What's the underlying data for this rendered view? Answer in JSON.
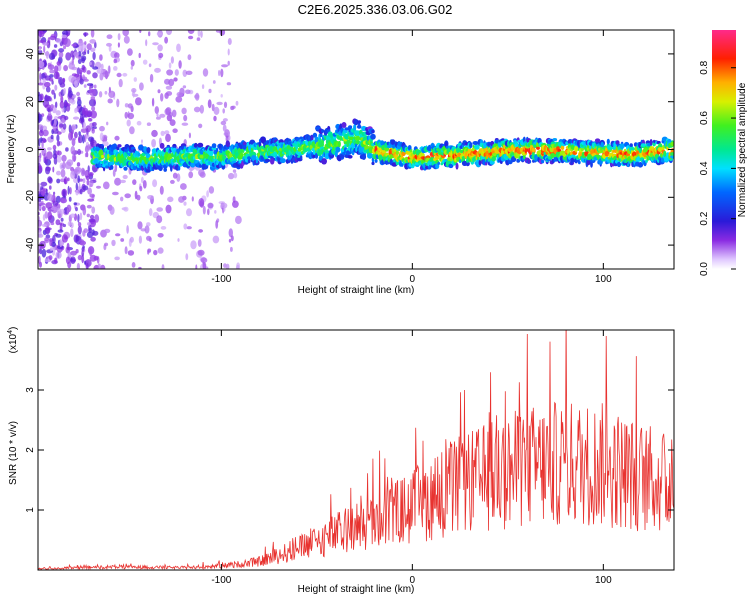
{
  "figure_title": "C2E6.2025.336.03.06.G02",
  "chart_data": [
    {
      "type": "heatmap",
      "xlabel": "Height of straight line (km)",
      "ylabel": "Frequency (Hz)",
      "xlim": [
        -196,
        137
      ],
      "ylim": [
        -50,
        50
      ],
      "x_ticks": [
        -100,
        0,
        100
      ],
      "y_ticks": [
        -40,
        -20,
        0,
        20,
        40
      ],
      "colorbar": {
        "label": "Normalized spectral amplitude",
        "range": [
          0,
          0.95
        ],
        "ticks": [
          0,
          0.2,
          0.4,
          0.6,
          0.8
        ]
      },
      "ridge": [
        {
          "x": -165,
          "f": -3
        },
        {
          "x": -140,
          "f": -4
        },
        {
          "x": -120,
          "f": -3
        },
        {
          "x": -100,
          "f": -3
        },
        {
          "x": -80,
          "f": -1
        },
        {
          "x": -60,
          "f": 0
        },
        {
          "x": -40,
          "f": 3
        },
        {
          "x": -28,
          "f": 5
        },
        {
          "x": -20,
          "f": 0
        },
        {
          "x": 0,
          "f": -3
        },
        {
          "x": 30,
          "f": -2
        },
        {
          "x": 60,
          "f": 0
        },
        {
          "x": 90,
          "f": -1
        },
        {
          "x": 115,
          "f": -2
        },
        {
          "x": 137,
          "f": 0
        }
      ]
    },
    {
      "type": "line",
      "xlabel": "Height of straight line (km)",
      "ylabel": "SNR (10 * v/v)",
      "y_multiplier": "(x10",
      "y_multiplier_exp": "4",
      "xlim": [
        -196,
        137
      ],
      "ylim": [
        0,
        4
      ],
      "x_ticks": [
        -100,
        0,
        100
      ],
      "y_ticks": [
        1,
        2,
        3
      ],
      "color": "#e8322f",
      "envelope": [
        {
          "x": -196,
          "v": 0.02
        },
        {
          "x": -160,
          "v": 0.05
        },
        {
          "x": -120,
          "v": 0.04
        },
        {
          "x": -95,
          "v": 0.08
        },
        {
          "x": -80,
          "v": 0.14
        },
        {
          "x": -60,
          "v": 0.35
        },
        {
          "x": -40,
          "v": 0.6
        },
        {
          "x": -20,
          "v": 0.8
        },
        {
          "x": 0,
          "v": 1.05
        },
        {
          "x": 20,
          "v": 1.35
        },
        {
          "x": 40,
          "v": 1.55
        },
        {
          "x": 60,
          "v": 1.72
        },
        {
          "x": 80,
          "v": 1.78
        },
        {
          "x": 100,
          "v": 1.75
        },
        {
          "x": 120,
          "v": 1.55
        },
        {
          "x": 137,
          "v": 1.4
        }
      ]
    }
  ]
}
